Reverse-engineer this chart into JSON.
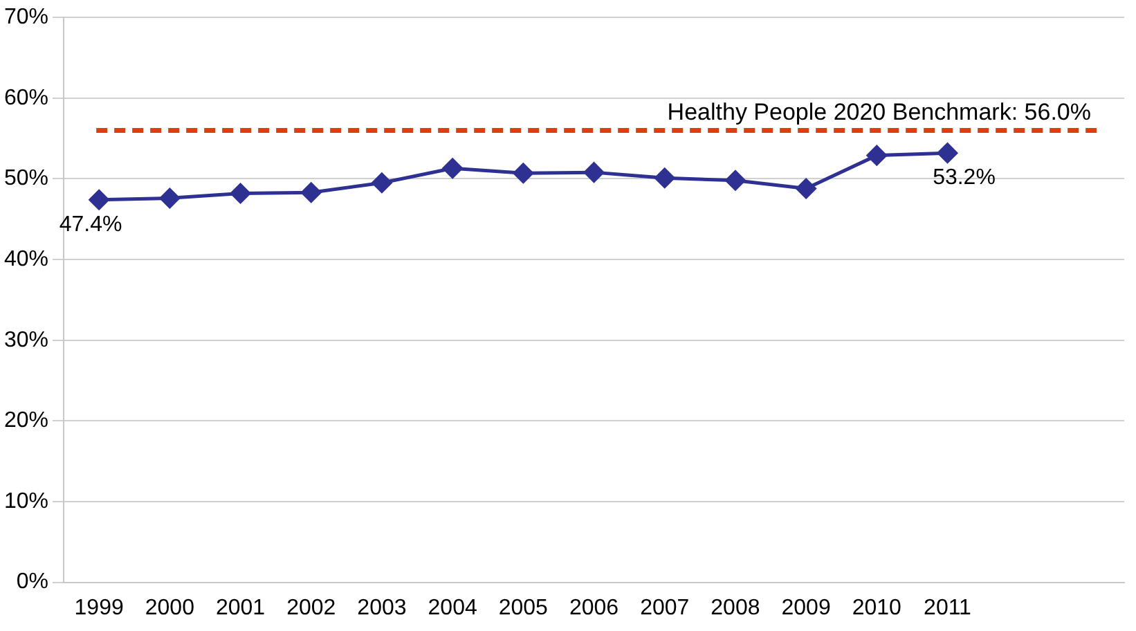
{
  "chart_data": {
    "type": "line",
    "categories": [
      "1999",
      "2000",
      "2001",
      "2002",
      "2003",
      "2004",
      "2005",
      "2006",
      "2007",
      "2008",
      "2009",
      "2010",
      "2011",
      null,
      null
    ],
    "values": [
      47.4,
      47.6,
      48.2,
      48.3,
      49.5,
      51.3,
      50.7,
      50.8,
      50.1,
      49.8,
      48.8,
      52.9,
      53.2,
      null,
      null
    ],
    "value_labels": [
      "47.4%",
      null,
      null,
      null,
      null,
      null,
      null,
      null,
      null,
      null,
      null,
      null,
      "53.2%",
      null,
      null
    ],
    "color": "#2e3192",
    "marker": "diamond",
    "line_style": "solid",
    "ylim": [
      0,
      70
    ],
    "yticks": [
      {
        "value": 0,
        "label": "0%"
      },
      {
        "value": 10,
        "label": "10%"
      },
      {
        "value": 20,
        "label": "20%"
      },
      {
        "value": 30,
        "label": "30%"
      },
      {
        "value": 40,
        "label": "40%"
      },
      {
        "value": 50,
        "label": "50%"
      },
      {
        "value": 60,
        "label": "60%"
      },
      {
        "value": 70,
        "label": "70%"
      }
    ],
    "ref_lines": [
      {
        "axis": "y",
        "value": 56,
        "label": "Healthy People 2020 Benchmark: 56.0%",
        "color": "#d9400f",
        "line_style": "dashed"
      }
    ],
    "grid": "y",
    "legend": false
  }
}
